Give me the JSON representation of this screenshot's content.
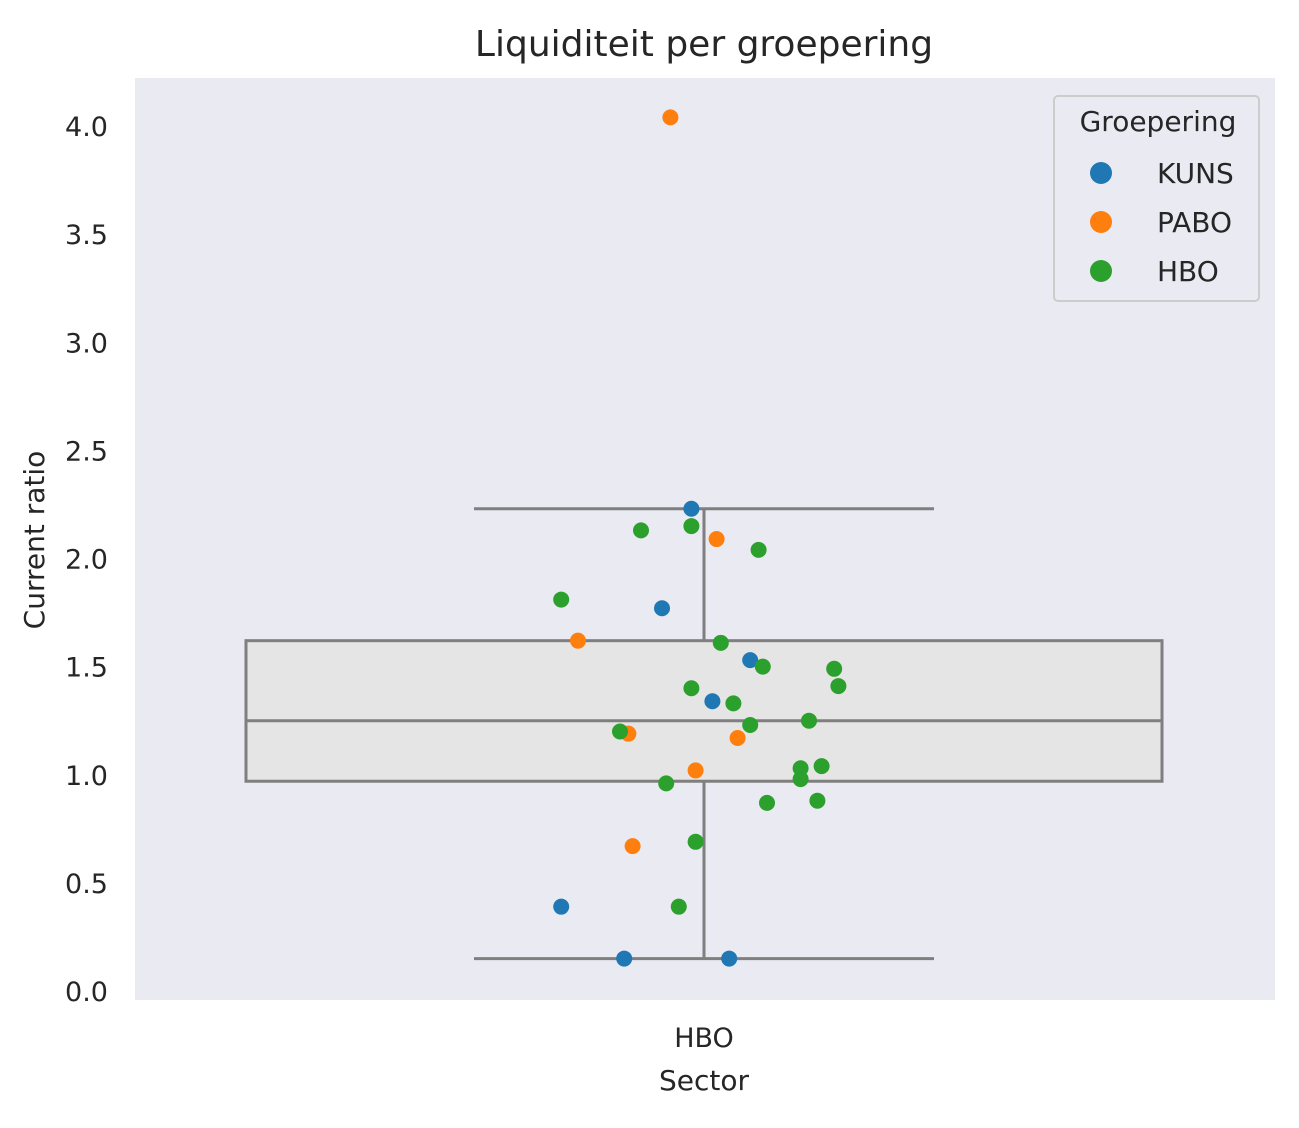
{
  "chart_data": {
    "type": "box+strip",
    "title": "Liquiditeit per groepering",
    "xlabel": "Sector",
    "ylabel": "Current ratio",
    "categories": [
      "HBO"
    ],
    "ylim": [
      -0.05,
      4.25
    ],
    "yticks": [
      0.0,
      0.5,
      1.0,
      1.5,
      2.0,
      2.5,
      3.0,
      3.5,
      4.0
    ],
    "ytick_labels": [
      "0.0",
      "0.5",
      "1.0",
      "1.5",
      "2.0",
      "2.5",
      "3.0",
      "3.5",
      "4.0"
    ],
    "grid": false,
    "background": "#eaeaf2",
    "box": {
      "category": "HBO",
      "whisker_low": 0.15,
      "q1": 0.97,
      "median": 1.25,
      "q3": 1.62,
      "whisker_high": 2.23,
      "box_color": "#e5e5e5",
      "line_color": "#7f7f7f"
    },
    "legend": {
      "title": "Groepering",
      "position": "top-right",
      "items": [
        "KUNS",
        "PABO",
        "HBO"
      ]
    },
    "series": [
      {
        "name": "KUNS",
        "color": "#1f77b4",
        "points": [
          {
            "jitter": -0.03,
            "y": 2.23
          },
          {
            "jitter": -0.1,
            "y": 1.77
          },
          {
            "jitter": 0.11,
            "y": 1.53
          },
          {
            "jitter": 0.02,
            "y": 1.34
          },
          {
            "jitter": -0.34,
            "y": 0.39
          },
          {
            "jitter": -0.19,
            "y": 0.15
          },
          {
            "jitter": 0.06,
            "y": 0.15
          }
        ]
      },
      {
        "name": "PABO",
        "color": "#ff7f0e",
        "points": [
          {
            "jitter": -0.08,
            "y": 4.04
          },
          {
            "jitter": 0.03,
            "y": 2.09
          },
          {
            "jitter": -0.3,
            "y": 1.62
          },
          {
            "jitter": -0.18,
            "y": 1.19
          },
          {
            "jitter": 0.08,
            "y": 1.17
          },
          {
            "jitter": -0.02,
            "y": 1.02
          },
          {
            "jitter": -0.17,
            "y": 0.67
          }
        ]
      },
      {
        "name": "HBO",
        "color": "#2ca02c",
        "points": [
          {
            "jitter": -0.15,
            "y": 2.13
          },
          {
            "jitter": -0.03,
            "y": 2.15
          },
          {
            "jitter": 0.13,
            "y": 2.04
          },
          {
            "jitter": -0.34,
            "y": 1.81
          },
          {
            "jitter": 0.04,
            "y": 1.61
          },
          {
            "jitter": 0.14,
            "y": 1.5
          },
          {
            "jitter": 0.31,
            "y": 1.49
          },
          {
            "jitter": 0.32,
            "y": 1.41
          },
          {
            "jitter": -0.03,
            "y": 1.4
          },
          {
            "jitter": 0.07,
            "y": 1.33
          },
          {
            "jitter": 0.25,
            "y": 1.25
          },
          {
            "jitter": 0.11,
            "y": 1.23
          },
          {
            "jitter": -0.2,
            "y": 1.2
          },
          {
            "jitter": 0.23,
            "y": 1.03
          },
          {
            "jitter": 0.28,
            "y": 1.04
          },
          {
            "jitter": 0.23,
            "y": 0.98
          },
          {
            "jitter": -0.09,
            "y": 0.96
          },
          {
            "jitter": 0.15,
            "y": 0.87
          },
          {
            "jitter": 0.27,
            "y": 0.88
          },
          {
            "jitter": -0.02,
            "y": 0.69
          },
          {
            "jitter": -0.06,
            "y": 0.39
          }
        ]
      }
    ]
  }
}
